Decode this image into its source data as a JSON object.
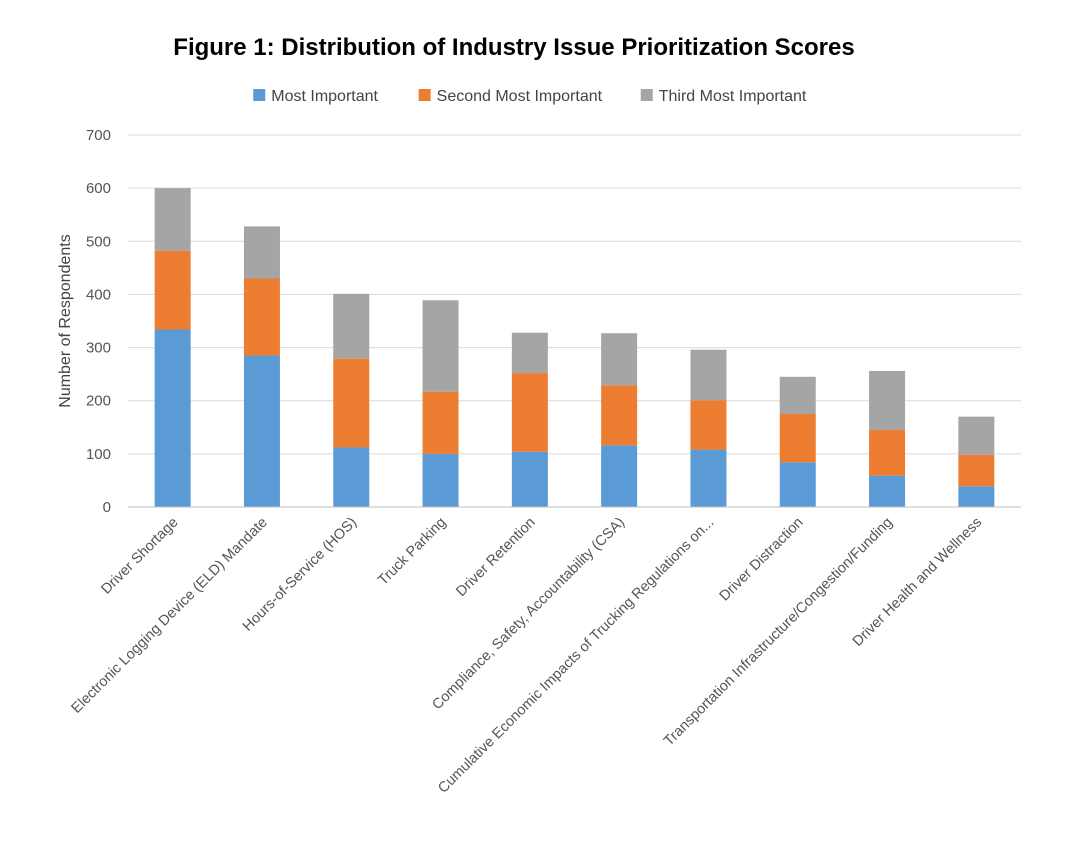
{
  "chart_data": {
    "type": "bar",
    "stacked": true,
    "title": "Figure 1: Distribution of Industry Issue Prioritization Scores",
    "xlabel": "",
    "ylabel": "Number of Respondents",
    "ylim": [
      0,
      700
    ],
    "yticks": [
      0,
      100,
      200,
      300,
      400,
      500,
      600,
      700
    ],
    "grid": true,
    "legend_position": "top-center",
    "categories": [
      "Driver Shortage",
      "Electronic Logging Device (ELD) Mandate",
      "Hours-of-Service (HOS)",
      "Truck Parking",
      "Driver Retention",
      "Compliance, Safety, Accountability (CSA)",
      "Cumulative Economic Impacts of Trucking Regulations on...",
      "Driver Distraction",
      "Transportation Infrastructure/Congestion/Funding",
      "Driver Health and Wellness"
    ],
    "series": [
      {
        "name": "Most Important",
        "color": "#5B9BD5",
        "values": [
          334,
          285,
          112,
          100,
          104,
          116,
          108,
          84,
          59,
          39
        ]
      },
      {
        "name": "Second Most Important",
        "color": "#ED7D31",
        "values": [
          148,
          145,
          167,
          117,
          148,
          113,
          93,
          91,
          86,
          59
        ]
      },
      {
        "name": "Third Most Important",
        "color": "#A5A5A5",
        "values": [
          118,
          98,
          122,
          172,
          76,
          98,
          95,
          70,
          111,
          72
        ]
      }
    ]
  }
}
